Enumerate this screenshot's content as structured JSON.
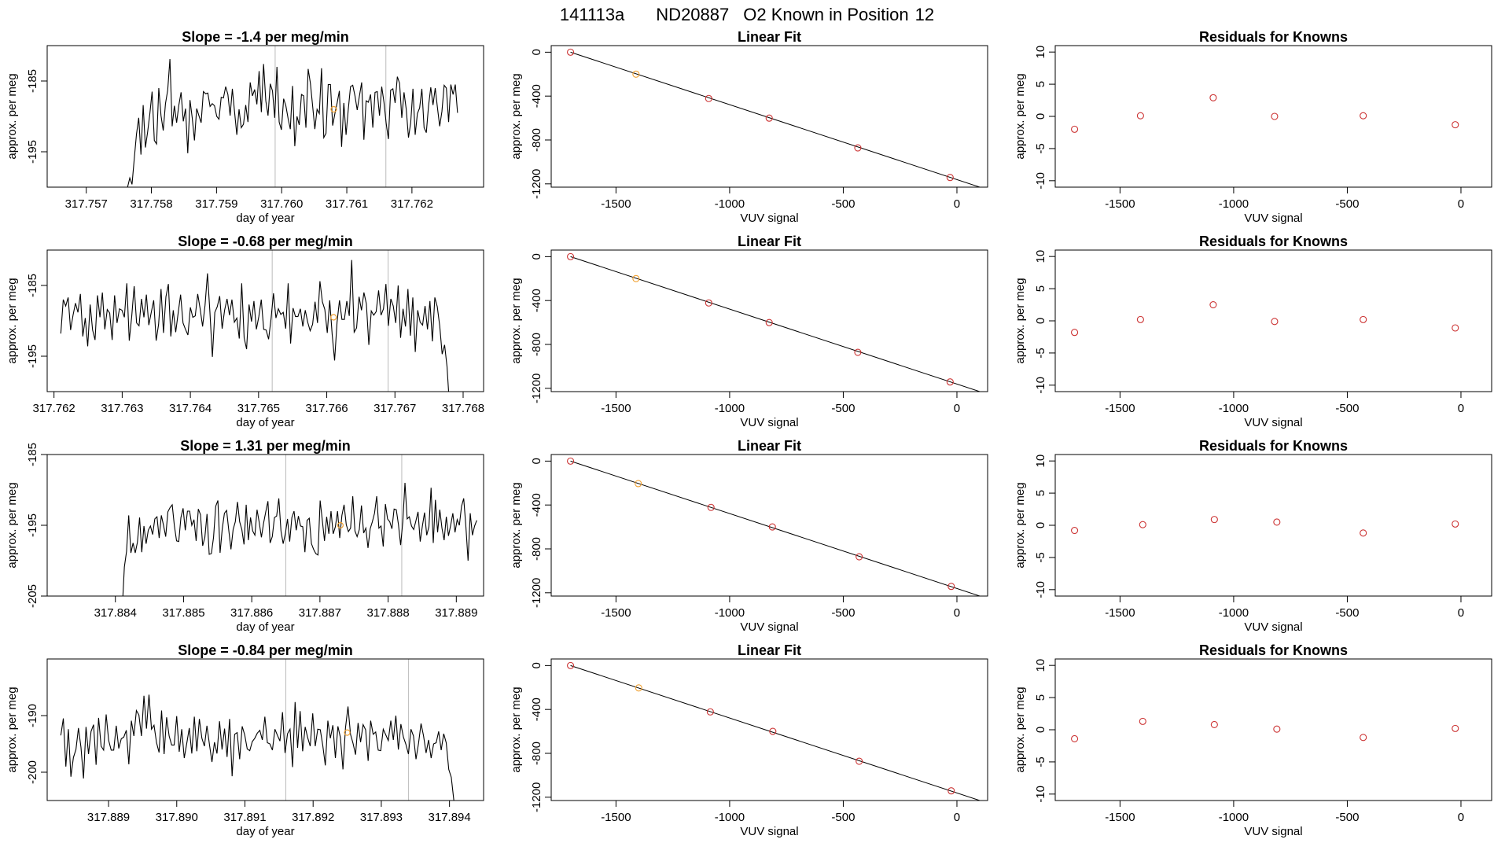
{
  "suptitle": {
    "run": "141113a",
    "tank": "ND20887",
    "desc": "O2 Known in Position",
    "position": "12"
  },
  "colors": {
    "line": "#000000",
    "point": "#cc3333",
    "highlight": "#f0a030",
    "vline": "#bbbbbb"
  },
  "chart_data": [
    {
      "type": "line",
      "panel": "timeseries",
      "row": 0,
      "title": "Slope =  -1.4  per meg/min",
      "xlabel": "day of year",
      "ylabel": "approx. per meg",
      "xlim": [
        317.7564,
        317.7631
      ],
      "ylim": [
        -200.0,
        -180.0
      ],
      "xticks": [
        "317.757",
        "317.758",
        "317.759",
        "317.760",
        "317.761",
        "317.762"
      ],
      "yticks": [
        "-195",
        "-185"
      ],
      "x_start": 317.7576,
      "x_end": 317.7627,
      "values": [
        -203.5,
        -200.0,
        -198.7,
        -199.6,
        -196.0,
        -192.5,
        -190.2,
        -195.4,
        -188.4,
        -194.4,
        -192.2,
        -189.6,
        -186.5,
        -193.4,
        -193.9,
        -186.0,
        -189.9,
        -192.0,
        -188.2,
        -186.3,
        -181.9,
        -191.4,
        -188.5,
        -190.9,
        -188.4,
        -186.6,
        -190.7,
        -188.9,
        -195.2,
        -187.7,
        -190.2,
        -193.4,
        -188.9,
        -189.9,
        -190.9,
        -186.5,
        -186.8,
        -186.7,
        -188.6,
        -188.2,
        -188.5,
        -190.0,
        -190.4,
        -187.3,
        -187.4,
        -185.8,
        -186.9,
        -189.9,
        -186.1,
        -189.4,
        -192.6,
        -189.0,
        -191.6,
        -191.1,
        -188.4,
        -190.8,
        -185.2,
        -187.1,
        -186.2,
        -188.3,
        -183.6,
        -189.4,
        -182.6,
        -187.8,
        -189.9,
        -185.4,
        -186.4,
        -190.2,
        -183.0,
        -190.8,
        -191.9,
        -187.5,
        -188.5,
        -190.3,
        -191.8,
        -185.7,
        -194.2,
        -190.0,
        -191.2,
        -186.9,
        -187.1,
        -191.6,
        -183.3,
        -185.3,
        -188.5,
        -191.8,
        -189.0,
        -189.6,
        -183.2,
        -193.0,
        -192.4,
        -185.5,
        -185.5,
        -191.3,
        -189.6,
        -188.1,
        -186.4,
        -194.3,
        -188.1,
        -192.6,
        -189.0,
        -185.8,
        -185.6,
        -187.1,
        -189.1,
        -187.1,
        -185.2,
        -193.3,
        -187.8,
        -188.0,
        -186.9,
        -191.6,
        -186.6,
        -186.5,
        -189.9,
        -185.8,
        -188.0,
        -191.0,
        -193.2,
        -186.3,
        -186.1,
        -188.1,
        -184.4,
        -185.3,
        -190.2,
        -186.6,
        -189.0,
        -193.0,
        -190.9,
        -186.1,
        -192.6,
        -189.6,
        -188.8,
        -186.1,
        -191.6,
        -192.3,
        -188.5,
        -185.9,
        -188.4,
        -186.0,
        -188.8,
        -191.4,
        -189.3,
        -185.6,
        -186.0,
        -190.8,
        -185.5,
        -186.9,
        -185.5,
        -189.5
      ],
      "vlines": [
        317.7599,
        317.7616
      ],
      "highlight": {
        "x": 317.7608,
        "y": -189.0
      }
    },
    {
      "type": "line",
      "panel": "fit",
      "row": 0,
      "title": "Linear Fit",
      "xlabel": "VUV signal",
      "ylabel": "approx. per meg",
      "xlim": [
        -1785,
        135
      ],
      "ylim": [
        -1230,
        60
      ],
      "xticks": [
        -1500,
        -1000,
        -500,
        0
      ],
      "yticks": [
        0,
        -400,
        -800,
        -1200
      ],
      "points": [
        [
          -1700,
          0
        ],
        [
          -1412,
          -200
        ],
        [
          -1092,
          -422
        ],
        [
          -826,
          -601
        ],
        [
          -436,
          -872
        ],
        [
          -30,
          -1142
        ]
      ],
      "highlight_index": 1,
      "fit": {
        "x": [
          -1700,
          130
        ],
        "y": [
          0,
          -1250
        ]
      }
    },
    {
      "type": "scatter",
      "panel": "residuals",
      "row": 0,
      "title": "Residuals for Knowns",
      "xlabel": "VUV signal",
      "ylabel": "approx. per meg",
      "xlim": [
        -1785,
        135
      ],
      "ylim": [
        -11,
        11
      ],
      "xticks": [
        -1500,
        -1000,
        -500,
        0
      ],
      "yticks": [
        10,
        5,
        0,
        -5,
        -10
      ],
      "x": [
        -1700,
        -1410,
        -1090,
        -820,
        -430,
        -25
      ],
      "y": [
        -2.0,
        0.1,
        2.9,
        0.0,
        0.1,
        -1.3
      ]
    },
    {
      "type": "line",
      "panel": "timeseries",
      "row": 1,
      "title": "Slope =  -0.68  per meg/min",
      "xlabel": "day of year",
      "ylabel": "approx. per meg",
      "xlim": [
        317.7619,
        317.7683
      ],
      "ylim": [
        -200.0,
        -180.0
      ],
      "xticks": [
        "317.762",
        "317.763",
        "317.764",
        "317.765",
        "317.766",
        "317.767",
        "317.768"
      ],
      "yticks": [
        "-195",
        "-185"
      ],
      "x_start": 317.7621,
      "x_end": 317.7678,
      "values": [
        -191.8,
        -187.0,
        -187.9,
        -186.7,
        -191.3,
        -189.2,
        -187.5,
        -188.8,
        -186.2,
        -192.2,
        -189.6,
        -193.6,
        -187.7,
        -191.3,
        -192.7,
        -186.4,
        -189.5,
        -186.0,
        -191.2,
        -188.4,
        -188.9,
        -192.7,
        -186.4,
        -190.3,
        -188.3,
        -188.5,
        -189.5,
        -184.7,
        -192.8,
        -189.4,
        -185.1,
        -190.3,
        -190.7,
        -186.9,
        -189.5,
        -186.3,
        -190.6,
        -188.8,
        -187.1,
        -192.8,
        -190.5,
        -185.5,
        -191.7,
        -186.6,
        -184.8,
        -192.2,
        -188.5,
        -191.6,
        -188.9,
        -186.3,
        -190.3,
        -191.2,
        -192.0,
        -188.1,
        -189.5,
        -189.3,
        -186.2,
        -188.3,
        -190.8,
        -187.8,
        -183.3,
        -188.8,
        -195.1,
        -188.8,
        -188.0,
        -186.5,
        -191.1,
        -188.5,
        -186.9,
        -189.2,
        -187.0,
        -190.2,
        -189.6,
        -192.5,
        -184.7,
        -192.4,
        -194.0,
        -187.7,
        -190.1,
        -187.2,
        -191.2,
        -189.4,
        -187.0,
        -191.2,
        -191.3,
        -192.6,
        -189.7,
        -186.1,
        -189.6,
        -188.3,
        -189.1,
        -188.8,
        -191.1,
        -184.7,
        -193.2,
        -188.2,
        -189.4,
        -189.4,
        -188.3,
        -190.8,
        -188.5,
        -190.2,
        -191.4,
        -190.5,
        -187.3,
        -190.3,
        -184.4,
        -187.3,
        -188.4,
        -191.7,
        -187.1,
        -191.9,
        -195.6,
        -190.2,
        -187.1,
        -189.8,
        -189.8,
        -187.2,
        -189.3,
        -181.4,
        -191.6,
        -191.0,
        -186.6,
        -188.5,
        -186.0,
        -187.6,
        -193.4,
        -188.6,
        -189.2,
        -188.7,
        -185.7,
        -189.2,
        -188.3,
        -184.8,
        -190.7,
        -186.9,
        -187.9,
        -190.3,
        -185.0,
        -192.4,
        -188.3,
        -190.8,
        -185.5,
        -192.1,
        -186.7,
        -194.4,
        -188.5,
        -190.2,
        -190.6,
        -187.9,
        -191.2,
        -187.2,
        -192.9,
        -186.7,
        -188.0,
        -190.7,
        -194.7,
        -193.4,
        -196.5,
        -202.0
      ],
      "vlines": [
        317.7652,
        317.7669
      ],
      "highlight": {
        "x": 317.7661,
        "y": -189.5
      }
    },
    {
      "type": "line",
      "panel": "fit",
      "row": 1,
      "title": "Linear Fit",
      "xlabel": "VUV signal",
      "ylabel": "approx. per meg",
      "xlim": [
        -1785,
        135
      ],
      "ylim": [
        -1230,
        60
      ],
      "xticks": [
        -1500,
        -1000,
        -500,
        0
      ],
      "yticks": [
        0,
        -400,
        -800,
        -1200
      ],
      "points": [
        [
          -1700,
          0
        ],
        [
          -1412,
          -200
        ],
        [
          -1092,
          -422
        ],
        [
          -826,
          -601
        ],
        [
          -436,
          -872
        ],
        [
          -30,
          -1142
        ]
      ],
      "highlight_index": 1,
      "fit": {
        "x": [
          -1700,
          130
        ],
        "y": [
          0,
          -1250
        ]
      }
    },
    {
      "type": "scatter",
      "panel": "residuals",
      "row": 1,
      "title": "Residuals for Knowns",
      "xlabel": "VUV signal",
      "ylabel": "approx. per meg",
      "xlim": [
        -1785,
        135
      ],
      "ylim": [
        -11,
        11
      ],
      "xticks": [
        -1500,
        -1000,
        -500,
        0
      ],
      "yticks": [
        10,
        5,
        0,
        -5,
        -10
      ],
      "x": [
        -1700,
        -1410,
        -1090,
        -820,
        -430,
        -25
      ],
      "y": [
        -1.8,
        0.2,
        2.5,
        -0.1,
        0.2,
        -1.1
      ]
    },
    {
      "type": "line",
      "panel": "timeseries",
      "row": 2,
      "title": "Slope =  1.31  per meg/min",
      "xlabel": "day of year",
      "ylabel": "approx. per meg",
      "xlim": [
        317.883,
        317.8894
      ],
      "ylim": [
        -205.0,
        -185.0
      ],
      "xticks": [
        "317.884",
        "317.885",
        "317.886",
        "317.887",
        "317.888",
        "317.889"
      ],
      "yticks": [
        "-205",
        "-195",
        "-185"
      ],
      "x_start": 317.8841,
      "x_end": 317.8893,
      "values": [
        -207.0,
        -200.9,
        -198.7,
        -193.6,
        -198.9,
        -197.5,
        -198.9,
        -197.4,
        -193.9,
        -198.8,
        -195.1,
        -197.6,
        -195.7,
        -195.1,
        -196.3,
        -194.1,
        -193.8,
        -196.8,
        -193.6,
        -195.0,
        -196.6,
        -193.1,
        -192.5,
        -192.1,
        -195.1,
        -197.2,
        -197.3,
        -193.9,
        -192.6,
        -195.7,
        -193.0,
        -193.0,
        -195.0,
        -194.2,
        -197.2,
        -192.7,
        -193.5,
        -197.9,
        -196.7,
        -193.4,
        -199.1,
        -199.0,
        -196.7,
        -192.3,
        -191.5,
        -198.9,
        -195.5,
        -193.3,
        -192.9,
        -195.7,
        -198.4,
        -195.6,
        -194.5,
        -191.7,
        -194.5,
        -195.6,
        -197.7,
        -192.1,
        -197.1,
        -193.9,
        -195.8,
        -196.4,
        -192.8,
        -194.6,
        -196.7,
        -194.7,
        -193.1,
        -191.6,
        -197.5,
        -196.6,
        -193.9,
        -193.7,
        -191.2,
        -195.8,
        -197.6,
        -196.2,
        -194.1,
        -197.3,
        -193.9,
        -193.0,
        -195.7,
        -193.7,
        -195.1,
        -195.2,
        -198.8,
        -194.3,
        -194.0,
        -197.6,
        -198.4,
        -199.0,
        -199.2,
        -191.5,
        -194.3,
        -197.2,
        -193.8,
        -196.2,
        -193.0,
        -196.2,
        -195.2,
        -193.0,
        -196.8,
        -193.6,
        -192.1,
        -194.9,
        -195.9,
        -195.4,
        -190.9,
        -195.8,
        -196.6,
        -195.6,
        -192.2,
        -196.1,
        -195.4,
        -198.2,
        -195.5,
        -194.5,
        -193.3,
        -190.9,
        -195.4,
        -195.1,
        -198.0,
        -192.0,
        -194.1,
        -194.5,
        -195.5,
        -192.7,
        -192.8,
        -194.9,
        -197.8,
        -194.5,
        -189.0,
        -194.1,
        -193.8,
        -195.1,
        -195.6,
        -194.4,
        -193.1,
        -197.3,
        -195.1,
        -193.2,
        -196.4,
        -195.2,
        -189.7,
        -197.5,
        -191.4,
        -196.0,
        -192.8,
        -195.4,
        -197.1,
        -193.8,
        -196.5,
        -195.0,
        -193.3,
        -196.0,
        -194.2,
        -195.0,
        -192.3,
        -191.2,
        -195.2,
        -200.0,
        -193.3,
        -196.4,
        -195.1,
        -194.3
      ],
      "vlines": [
        317.8865,
        317.8882
      ],
      "highlight": {
        "x": 317.8873,
        "y": -195.0
      }
    },
    {
      "type": "line",
      "panel": "fit",
      "row": 2,
      "title": "Linear Fit",
      "xlabel": "VUV signal",
      "ylabel": "approx. per meg",
      "xlim": [
        -1785,
        135
      ],
      "ylim": [
        -1230,
        60
      ],
      "xticks": [
        -1500,
        -1000,
        -500,
        0
      ],
      "yticks": [
        0,
        -400,
        -800,
        -1200
      ],
      "points": [
        [
          -1700,
          0
        ],
        [
          -1402,
          -205
        ],
        [
          -1082,
          -422
        ],
        [
          -812,
          -600
        ],
        [
          -430,
          -872
        ],
        [
          -25,
          -1142
        ]
      ],
      "highlight_index": 1,
      "fit": {
        "x": [
          -1700,
          130
        ],
        "y": [
          0,
          -1250
        ]
      }
    },
    {
      "type": "scatter",
      "panel": "residuals",
      "row": 2,
      "title": "Residuals for Knowns",
      "xlabel": "VUV signal",
      "ylabel": "approx. per meg",
      "xlim": [
        -1785,
        135
      ],
      "ylim": [
        -11,
        11
      ],
      "xticks": [
        -1500,
        -1000,
        -500,
        0
      ],
      "yticks": [
        10,
        5,
        0,
        -5,
        -10
      ],
      "x": [
        -1700,
        -1400,
        -1085,
        -810,
        -430,
        -25
      ],
      "y": [
        -0.8,
        0.1,
        0.9,
        0.5,
        -1.2,
        0.2
      ]
    },
    {
      "type": "line",
      "panel": "timeseries",
      "row": 3,
      "title": "Slope =  -0.84  per meg/min",
      "xlabel": "day of year",
      "ylabel": "approx. per meg",
      "xlim": [
        317.8881,
        317.8945
      ],
      "ylim": [
        -205.0,
        -180.0
      ],
      "xticks": [
        "317.889",
        "317.890",
        "317.891",
        "317.892",
        "317.893",
        "317.894"
      ],
      "yticks": [
        "-200",
        "-190"
      ],
      "x_start": 317.8883,
      "x_end": 317.8941,
      "values": [
        -193.5,
        -190.5,
        -199.0,
        -192.4,
        -200.8,
        -197.4,
        -196.0,
        -192.2,
        -195.6,
        -201.1,
        -192.0,
        -196.8,
        -192.8,
        -191.6,
        -198.7,
        -190.4,
        -195.4,
        -196.1,
        -189.8,
        -194.4,
        -196.1,
        -196.1,
        -191.8,
        -195.8,
        -194.1,
        -193.8,
        -192.6,
        -198.6,
        -190.9,
        -193.6,
        -189.1,
        -189.9,
        -193.6,
        -186.5,
        -192.3,
        -186.3,
        -192.4,
        -191.7,
        -194.8,
        -196.5,
        -189.1,
        -196.8,
        -190.3,
        -193.6,
        -195.2,
        -195.2,
        -190.1,
        -196.4,
        -192.4,
        -197.5,
        -194.9,
        -192.2,
        -196.7,
        -190.2,
        -196.3,
        -190.6,
        -194.0,
        -195.4,
        -191.8,
        -195.1,
        -198.2,
        -194.7,
        -196.7,
        -191.0,
        -196.0,
        -192.3,
        -197.3,
        -190.6,
        -200.7,
        -193.3,
        -193.0,
        -197.7,
        -191.9,
        -193.4,
        -195.9,
        -196.2,
        -194.6,
        -194.0,
        -193.1,
        -192.6,
        -194.3,
        -190.2,
        -194.8,
        -195.0,
        -196.1,
        -192.4,
        -193.5,
        -194.5,
        -189.4,
        -196.6,
        -193.2,
        -192.4,
        -199.1,
        -187.6,
        -195.7,
        -189.2,
        -196.3,
        -192.0,
        -193.9,
        -195.4,
        -189.6,
        -195.4,
        -192.4,
        -192.5,
        -195.3,
        -198.8,
        -190.9,
        -194.0,
        -191.7,
        -197.5,
        -191.9,
        -193.9,
        -199.5,
        -192.2,
        -188.4,
        -193.3,
        -194.9,
        -196.9,
        -191.3,
        -194.7,
        -191.6,
        -192.5,
        -198.0,
        -190.9,
        -193.3,
        -192.9,
        -196.1,
        -196.2,
        -192.4,
        -193.4,
        -194.4,
        -190.9,
        -194.3,
        -190.0,
        -196.0,
        -191.5,
        -193.8,
        -195.1,
        -196.8,
        -192.4,
        -193.6,
        -197.7,
        -194.9,
        -191.4,
        -193.6,
        -196.6,
        -194.3,
        -197.5,
        -195.0,
        -194.8,
        -192.8,
        -196.1,
        -193.2,
        -194.8,
        -199.5,
        -200.9,
        -204.9,
        -206.0
      ],
      "vlines": [
        317.8916,
        317.8934
      ],
      "highlight": {
        "x": 317.8925,
        "y": -193.0
      }
    },
    {
      "type": "line",
      "panel": "fit",
      "row": 3,
      "title": "Linear Fit",
      "xlabel": "VUV signal",
      "ylabel": "approx. per meg",
      "xlim": [
        -1785,
        135
      ],
      "ylim": [
        -1230,
        60
      ],
      "xticks": [
        -1500,
        -1000,
        -500,
        0
      ],
      "yticks": [
        0,
        -400,
        -800,
        -1200
      ],
      "points": [
        [
          -1700,
          0
        ],
        [
          -1400,
          -204
        ],
        [
          -1085,
          -422
        ],
        [
          -810,
          -600
        ],
        [
          -430,
          -872
        ],
        [
          -25,
          -1142
        ]
      ],
      "highlight_index": 1,
      "fit": {
        "x": [
          -1700,
          130
        ],
        "y": [
          0,
          -1250
        ]
      }
    },
    {
      "type": "scatter",
      "panel": "residuals",
      "row": 3,
      "title": "Residuals for Knowns",
      "xlabel": "VUV signal",
      "ylabel": "approx. per meg",
      "xlim": [
        -1785,
        135
      ],
      "ylim": [
        -11,
        11
      ],
      "xticks": [
        -1500,
        -1000,
        -500,
        0
      ],
      "yticks": [
        10,
        5,
        0,
        -5,
        -10
      ],
      "x": [
        -1700,
        -1400,
        -1085,
        -810,
        -430,
        -25
      ],
      "y": [
        -1.4,
        1.3,
        0.8,
        0.1,
        -1.2,
        0.2
      ]
    }
  ]
}
